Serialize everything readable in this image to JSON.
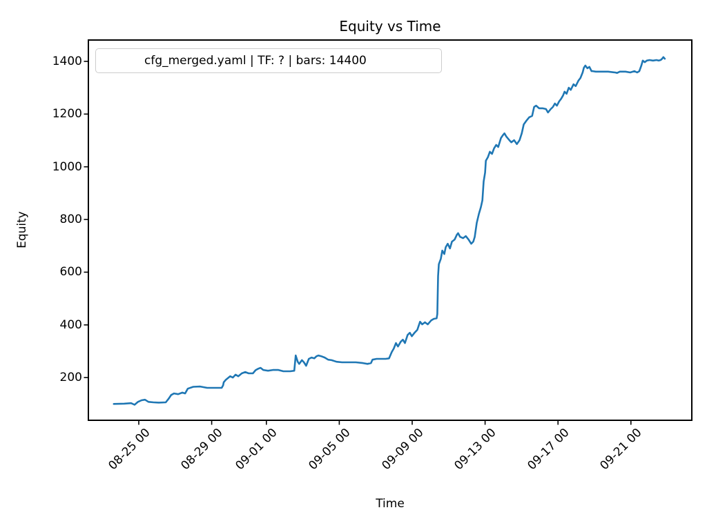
{
  "chart_data": {
    "type": "line",
    "title": "Equity vs Time",
    "xlabel": "Time",
    "ylabel": "Equity",
    "grid": false,
    "legend_position": "upper left",
    "line_color": "#1f77b4",
    "x_unit": "days relative to 08-25 00:00",
    "xlim": [
      -2.765,
      30.34
    ],
    "ylim": [
      38,
      1481
    ],
    "x_ticks": [
      {
        "t": 0,
        "label": "08-25 00"
      },
      {
        "t": 4,
        "label": "08-29 00"
      },
      {
        "t": 7,
        "label": "09-01 00"
      },
      {
        "t": 11,
        "label": "09-05 00"
      },
      {
        "t": 15,
        "label": "09-09 00"
      },
      {
        "t": 19,
        "label": "09-13 00"
      },
      {
        "t": 23,
        "label": "09-17 00"
      },
      {
        "t": 27,
        "label": "09-21 00"
      }
    ],
    "y_ticks": [
      200,
      400,
      600,
      800,
      1000,
      1200,
      1400
    ],
    "series": [
      {
        "name": "cfg_merged.yaml | TF: ? | bars: 14400",
        "color": "#1f77b4",
        "points": [
          [
            -1.37,
            100
          ],
          [
            -0.8,
            101
          ],
          [
            -0.42,
            103
          ],
          [
            -0.23,
            97
          ],
          [
            -0.04,
            108
          ],
          [
            0.15,
            114
          ],
          [
            0.34,
            116
          ],
          [
            0.53,
            108
          ],
          [
            0.8,
            106
          ],
          [
            1.1,
            105
          ],
          [
            1.48,
            106
          ],
          [
            1.63,
            119
          ],
          [
            1.78,
            134
          ],
          [
            1.93,
            140
          ],
          [
            2.16,
            137
          ],
          [
            2.39,
            143
          ],
          [
            2.54,
            140
          ],
          [
            2.69,
            158
          ],
          [
            2.99,
            165
          ],
          [
            3.37,
            166
          ],
          [
            3.75,
            161
          ],
          [
            4.14,
            161
          ],
          [
            4.55,
            161
          ],
          [
            4.63,
            171
          ],
          [
            4.66,
            182
          ],
          [
            4.78,
            192
          ],
          [
            5.01,
            205
          ],
          [
            5.16,
            200
          ],
          [
            5.31,
            211
          ],
          [
            5.46,
            205
          ],
          [
            5.65,
            216
          ],
          [
            5.84,
            221
          ],
          [
            6.03,
            216
          ],
          [
            6.26,
            216
          ],
          [
            6.41,
            228
          ],
          [
            6.56,
            234
          ],
          [
            6.68,
            237
          ],
          [
            6.83,
            229
          ],
          [
            7.09,
            226
          ],
          [
            7.36,
            229
          ],
          [
            7.66,
            229
          ],
          [
            7.93,
            224
          ],
          [
            8.31,
            224
          ],
          [
            8.53,
            226
          ],
          [
            8.61,
            284
          ],
          [
            8.72,
            260
          ],
          [
            8.8,
            252
          ],
          [
            8.95,
            266
          ],
          [
            9.06,
            258
          ],
          [
            9.18,
            245
          ],
          [
            9.33,
            271
          ],
          [
            9.48,
            276
          ],
          [
            9.63,
            273
          ],
          [
            9.75,
            281
          ],
          [
            9.86,
            284
          ],
          [
            10.01,
            281
          ],
          [
            10.2,
            276
          ],
          [
            10.39,
            268
          ],
          [
            10.58,
            266
          ],
          [
            10.85,
            260
          ],
          [
            11.15,
            258
          ],
          [
            11.53,
            258
          ],
          [
            11.91,
            258
          ],
          [
            12.29,
            255
          ],
          [
            12.55,
            252
          ],
          [
            12.74,
            255
          ],
          [
            12.82,
            268
          ],
          [
            13.05,
            271
          ],
          [
            13.31,
            271
          ],
          [
            13.54,
            271
          ],
          [
            13.73,
            273
          ],
          [
            13.88,
            297
          ],
          [
            13.99,
            310
          ],
          [
            14.11,
            331
          ],
          [
            14.22,
            318
          ],
          [
            14.37,
            336
          ],
          [
            14.49,
            344
          ],
          [
            14.6,
            331
          ],
          [
            14.75,
            362
          ],
          [
            14.87,
            370
          ],
          [
            14.98,
            357
          ],
          [
            15.13,
            370
          ],
          [
            15.28,
            381
          ],
          [
            15.43,
            412
          ],
          [
            15.55,
            402
          ],
          [
            15.7,
            410
          ],
          [
            15.85,
            402
          ],
          [
            16.04,
            417
          ],
          [
            16.19,
            423
          ],
          [
            16.34,
            425
          ],
          [
            16.38,
            441
          ],
          [
            16.42,
            585
          ],
          [
            16.46,
            630
          ],
          [
            16.57,
            651
          ],
          [
            16.65,
            682
          ],
          [
            16.76,
            669
          ],
          [
            16.84,
            695
          ],
          [
            16.95,
            708
          ],
          [
            17.07,
            690
          ],
          [
            17.18,
            716
          ],
          [
            17.33,
            724
          ],
          [
            17.45,
            742
          ],
          [
            17.52,
            748
          ],
          [
            17.63,
            734
          ],
          [
            17.79,
            729
          ],
          [
            17.94,
            737
          ],
          [
            18.09,
            724
          ],
          [
            18.24,
            708
          ],
          [
            18.35,
            716
          ],
          [
            18.43,
            734
          ],
          [
            18.54,
            787
          ],
          [
            18.66,
            821
          ],
          [
            18.77,
            847
          ],
          [
            18.85,
            873
          ],
          [
            18.92,
            944
          ],
          [
            19.0,
            978
          ],
          [
            19.04,
            1023
          ],
          [
            19.15,
            1036
          ],
          [
            19.26,
            1057
          ],
          [
            19.38,
            1049
          ],
          [
            19.49,
            1070
          ],
          [
            19.61,
            1083
          ],
          [
            19.72,
            1075
          ],
          [
            19.87,
            1109
          ],
          [
            19.98,
            1120
          ],
          [
            20.06,
            1127
          ],
          [
            20.17,
            1114
          ],
          [
            20.33,
            1101
          ],
          [
            20.44,
            1093
          ],
          [
            20.59,
            1101
          ],
          [
            20.74,
            1086
          ],
          [
            20.89,
            1101
          ],
          [
            21.01,
            1127
          ],
          [
            21.12,
            1161
          ],
          [
            21.27,
            1175
          ],
          [
            21.42,
            1188
          ],
          [
            21.58,
            1193
          ],
          [
            21.69,
            1227
          ],
          [
            21.8,
            1232
          ],
          [
            21.96,
            1222
          ],
          [
            22.15,
            1222
          ],
          [
            22.34,
            1219
          ],
          [
            22.45,
            1206
          ],
          [
            22.6,
            1219
          ],
          [
            22.72,
            1227
          ],
          [
            22.83,
            1240
          ],
          [
            22.94,
            1232
          ],
          [
            23.06,
            1248
          ],
          [
            23.17,
            1258
          ],
          [
            23.28,
            1271
          ],
          [
            23.36,
            1285
          ],
          [
            23.47,
            1277
          ],
          [
            23.59,
            1300
          ],
          [
            23.7,
            1292
          ],
          [
            23.85,
            1313
          ],
          [
            23.97,
            1306
          ],
          [
            24.12,
            1327
          ],
          [
            24.23,
            1337
          ],
          [
            24.35,
            1358
          ],
          [
            24.42,
            1376
          ],
          [
            24.5,
            1384
          ],
          [
            24.61,
            1374
          ],
          [
            24.72,
            1379
          ],
          [
            24.84,
            1363
          ],
          [
            24.91,
            1363
          ],
          [
            25.07,
            1361
          ],
          [
            25.37,
            1361
          ],
          [
            25.75,
            1361
          ],
          [
            26.13,
            1358
          ],
          [
            26.24,
            1356
          ],
          [
            26.39,
            1361
          ],
          [
            26.7,
            1361
          ],
          [
            26.96,
            1358
          ],
          [
            27.19,
            1363
          ],
          [
            27.34,
            1358
          ],
          [
            27.46,
            1363
          ],
          [
            27.57,
            1384
          ],
          [
            27.65,
            1403
          ],
          [
            27.76,
            1397
          ],
          [
            27.87,
            1403
          ],
          [
            28.02,
            1405
          ],
          [
            28.21,
            1403
          ],
          [
            28.4,
            1405
          ],
          [
            28.52,
            1403
          ],
          [
            28.63,
            1405
          ],
          [
            28.71,
            1410
          ],
          [
            28.78,
            1416
          ],
          [
            28.86,
            1410
          ]
        ]
      }
    ]
  }
}
